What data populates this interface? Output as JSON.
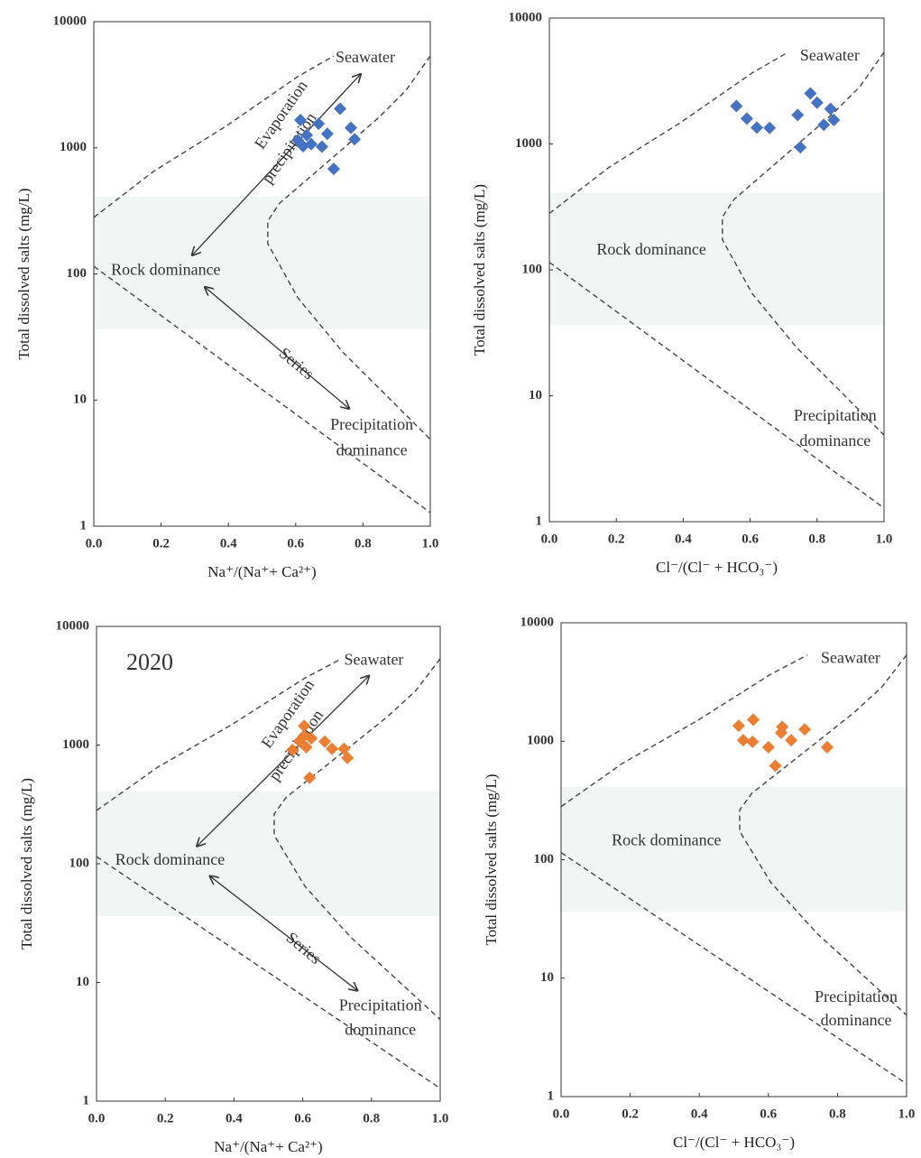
{
  "chart_data": [
    {
      "type": "scatter",
      "x_label": "Na⁺/(Na⁺+ Ca²⁺)",
      "y_label": "Total dissolved salts (mg/L)",
      "yscale": "log",
      "color": "#4472c4",
      "xlim": [
        0,
        1
      ],
      "ylim": [
        1,
        10000
      ],
      "xticks": [
        {
          "value": 0,
          "label": "0.0"
        },
        0.2,
        0.4,
        0.6,
        0.8,
        {
          "value": 1,
          "label": "1.0"
        }
      ],
      "yticks": [
        1,
        10,
        100,
        1000,
        10000
      ],
      "annotations": [
        "Seawater",
        "Evaporation",
        "precipitation",
        "Rock dominance",
        "Series",
        "Precipitation",
        "dominance"
      ],
      "x": [
        0.614,
        0.606,
        0.646,
        0.668,
        0.678,
        0.694,
        0.732,
        0.764,
        0.775,
        0.713,
        0.633,
        0.622
      ],
      "values": [
        1660,
        1150,
        1070,
        1550,
        1020,
        1290,
        2040,
        1440,
        1170,
        680,
        1260,
        1030
      ]
    },
    {
      "type": "scatter",
      "x_label": "Cl⁻/(Cl⁻ + HCO₃⁻)",
      "y_label": "Total dissolved salts (mg/L)",
      "yscale": "log",
      "color": "#4472c4",
      "xlim": [
        0,
        1
      ],
      "ylim": [
        1,
        10000
      ],
      "xticks": [
        {
          "value": 0,
          "label": "0.0"
        },
        0.2,
        0.4,
        0.6,
        0.8,
        {
          "value": 1,
          "label": "1.0"
        }
      ],
      "yticks": [
        1,
        10,
        100,
        1000,
        10000
      ],
      "annotations": [
        "Seawater",
        "Rock dominance",
        "Precipitation",
        "dominance"
      ],
      "x": [
        0.559,
        0.59,
        0.62,
        0.658,
        0.742,
        0.78,
        0.8,
        0.84,
        0.82,
        0.85,
        0.75
      ],
      "values": [
        2000,
        1590,
        1350,
        1340,
        1700,
        2520,
        2130,
        1900,
        1420,
        1550,
        940
      ]
    },
    {
      "type": "scatter",
      "x_label": "Na⁺/(Na⁺+ Ca²⁺)",
      "y_label": "Total dissolved salts (mg/L)",
      "yscale": "log",
      "color": "#ed7d31",
      "xlim": [
        0,
        1
      ],
      "ylim": [
        1,
        10000
      ],
      "xticks": [
        {
          "value": 0,
          "label": "0.0"
        },
        0.2,
        0.4,
        0.6,
        0.8,
        {
          "value": 1,
          "label": "1.0"
        }
      ],
      "yticks": [
        1,
        10,
        100,
        1000,
        10000
      ],
      "annotations": [
        "Seawater",
        "Evaporation",
        "precipitation",
        "Rock dominance",
        "Series",
        "Precipitation",
        "dominance",
        "2020"
      ],
      "x": [
        0.604,
        0.604,
        0.625,
        0.57,
        0.61,
        0.664,
        0.685,
        0.72,
        0.73,
        0.62,
        0.59
      ],
      "values": [
        1450,
        1200,
        1140,
        910,
        960,
        1070,
        930,
        930,
        780,
        530,
        1080
      ]
    },
    {
      "type": "scatter",
      "x_label": "Cl⁻/(Cl⁻ + HCO₃⁻)",
      "y_label": "Total dissolved salts (mg/L)",
      "yscale": "log",
      "color": "#ed7d31",
      "xlim": [
        0,
        1
      ],
      "ylim": [
        1,
        10000
      ],
      "xticks": [
        {
          "value": 0,
          "label": "0.0"
        },
        0.2,
        0.4,
        0.6,
        0.8,
        {
          "value": 1,
          "label": "1.0"
        }
      ],
      "yticks": [
        1,
        10,
        100,
        1000,
        10000
      ],
      "annotations": [
        "Seawater",
        "Rock dominance",
        "Precipitation",
        "dominance"
      ],
      "x": [
        0.514,
        0.556,
        0.527,
        0.554,
        0.6,
        0.62,
        0.64,
        0.637,
        0.666,
        0.705,
        0.77
      ],
      "values": [
        1350,
        1520,
        1020,
        990,
        890,
        620,
        1320,
        1180,
        1020,
        1260,
        890
      ]
    }
  ]
}
